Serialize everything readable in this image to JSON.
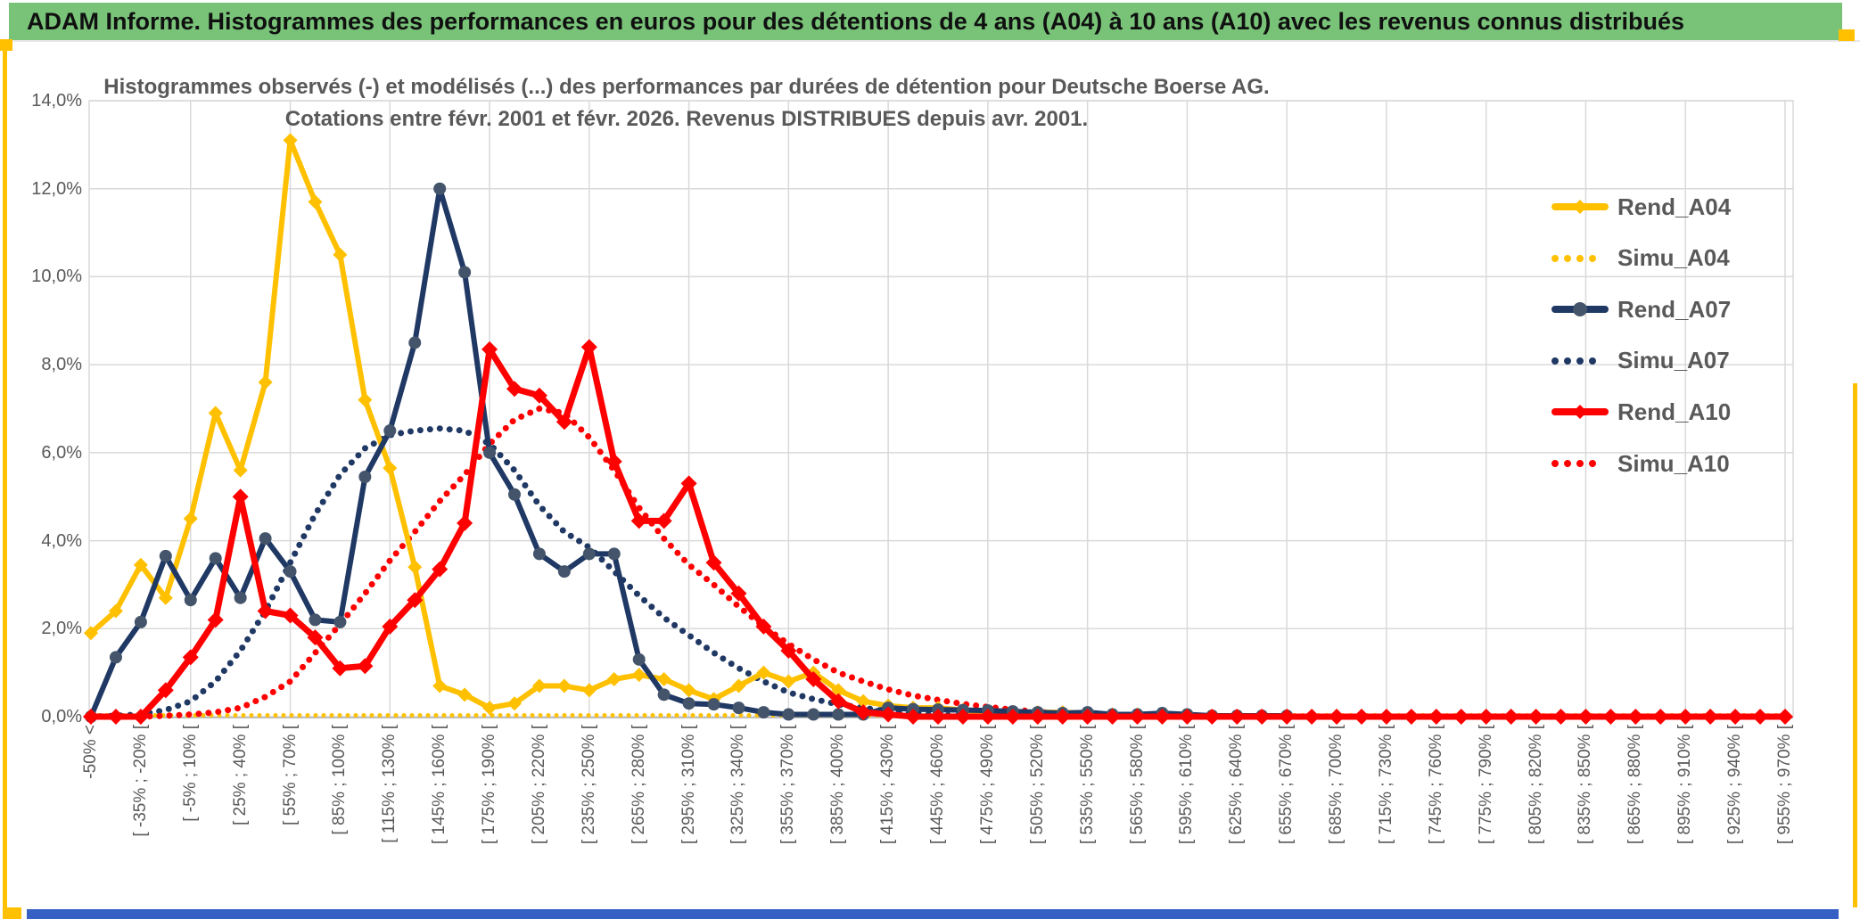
{
  "window": {
    "header_title": "ADAM Informe. Histogrammes des performances en euros pour des détentions de 4 ans (A04) à 10 ans (A10) avec les revenus connus distribués",
    "accent_colors": {
      "banner_green": "#79C379",
      "gold": "#FFC000",
      "bottom_bar_blue": "#3660C4"
    }
  },
  "chart": {
    "title_line1": "Histogrammes observés (-) et modélisés (...) des performances par durées de détention pour Deutsche Boerse AG.",
    "title_line2": "Cotations entre févr. 2001 et févr. 2026. Revenus DISTRIBUES depuis avr. 2001.",
    "y_ticks": [
      "14,0%",
      "12,0%",
      "10,0%",
      "8,0%",
      "6,0%",
      "4,0%",
      "2,0%",
      "0,0%"
    ],
    "y_tick_values": [
      14,
      12,
      10,
      8,
      6,
      4,
      2,
      0
    ],
    "x_labels": [
      "-50% <",
      "[ -35% ; -20% [",
      "[ -5% ; 10% [",
      "[ 25% ; 40% [",
      "[ 55% ; 70% [",
      "[ 85% ; 100% [",
      "[ 115% ; 130% [",
      "[ 145% ; 160% [",
      "[ 175% ; 190% [",
      "[ 205% ; 220% [",
      "[ 235% ; 250% [",
      "[ 265% ; 280% [",
      "[ 295% ; 310% [",
      "[ 325% ; 340% [",
      "[ 355% ; 370% [",
      "[ 385% ; 400% [",
      "[ 415% ; 430% [",
      "[ 445% ; 460% [",
      "[ 475% ; 490% [",
      "[ 505% ; 520% [",
      "[ 535% ; 550% [",
      "[ 565% ; 580% [",
      "[ 595% ; 610% [",
      "[ 625% ; 640% [",
      "[ 655% ; 670% [",
      "[ 685% ; 700% [",
      "[ 715% ; 730% [",
      "[ 745% ; 760% [",
      "[ 775% ; 790% [",
      "[ 805% ; 820% [",
      "[ 835% ; 850% [",
      "[ 865% ; 880% [",
      "[ 895% ; 910% [",
      "[ 925% ; 940% [",
      "[ 955% ; 970% ["
    ],
    "legend": [
      {
        "name": "Rend_A04",
        "label": "Rend_A04",
        "color": "#FFC000",
        "style": "solid",
        "marker": "diamond",
        "marker_color": "#FFC000"
      },
      {
        "name": "Simu_A04",
        "label": "Simu_A04",
        "color": "#FFC000",
        "style": "dotted",
        "marker": "none",
        "marker_color": "#FFC000"
      },
      {
        "name": "Rend_A07",
        "label": "Rend_A07",
        "color": "#1F3864",
        "style": "solid",
        "marker": "circle",
        "marker_color": "#44546A"
      },
      {
        "name": "Simu_A07",
        "label": "Simu_A07",
        "color": "#1F3864",
        "style": "dotted",
        "marker": "none",
        "marker_color": "#1F3864"
      },
      {
        "name": "Rend_A10",
        "label": "Rend_A10",
        "color": "#FF0000",
        "style": "solid",
        "marker": "diamond",
        "marker_color": "#FF0000"
      },
      {
        "name": "Simu_A10",
        "label": "Simu_A10",
        "color": "#FF0000",
        "style": "dotted",
        "marker": "none",
        "marker_color": "#FF0000"
      }
    ]
  },
  "chart_data": {
    "type": "line",
    "title": "Histogrammes observés (-) et modélisés (...) des performances par durées de détention pour Deutsche Boerse AG. Cotations entre févr. 2001 et févr. 2026. Revenus DISTRIBUES depuis avr. 2001.",
    "xlabel": "",
    "ylabel": "",
    "ylim": [
      0,
      14
    ],
    "grid": true,
    "legend_position": "right-inside",
    "bin_width_pct": 15,
    "points_per_label_interval": 2,
    "x_structure": "69 bins of 15% width from '<-50%' to '[955%;970%['; axis labels shown every second bin",
    "categories_shown": [
      "-50% <",
      "[ -35% ; -20% [",
      "[ -5% ; 10% [",
      "[ 25% ; 40% [",
      "[ 55% ; 70% [",
      "[ 85% ; 100% [",
      "[ 115% ; 130% [",
      "[ 145% ; 160% [",
      "[ 175% ; 190% [",
      "[ 205% ; 220% [",
      "[ 235% ; 250% [",
      "[ 265% ; 280% [",
      "[ 295% ; 310% [",
      "[ 325% ; 340% [",
      "[ 355% ; 370% [",
      "[ 385% ; 400% [",
      "[ 415% ; 430% [",
      "[ 445% ; 460% [",
      "[ 475% ; 490% [",
      "[ 505% ; 520% [",
      "[ 535% ; 550% [",
      "[ 565% ; 580% [",
      "[ 595% ; 610% [",
      "[ 625% ; 640% [",
      "[ 655% ; 670% [",
      "[ 685% ; 700% [",
      "[ 715% ; 730% [",
      "[ 745% ; 760% [",
      "[ 775% ; 790% [",
      "[ 805% ; 820% [",
      "[ 835% ; 850% [",
      "[ 865% ; 880% [",
      "[ 895% ; 910% [",
      "[ 925% ; 940% [",
      "[ 955% ; 970% ["
    ],
    "series": [
      {
        "name": "Simu_A04",
        "color": "#FFC000",
        "style": "dotted",
        "width": 5,
        "dash": "0 9",
        "marker": "none",
        "marker_color": "#FFC000",
        "values": [
          0.03,
          0.03,
          0.03,
          0.03,
          0.03,
          0.03,
          0.03,
          0.03,
          0.03,
          0.03,
          0.03,
          0.03,
          0.03,
          0.03,
          0.03,
          0.03,
          0.03,
          0.03,
          0.03,
          0.03,
          0.03,
          0.03,
          0.03,
          0.03,
          0.03,
          0.03,
          0.03,
          0.03,
          0.03,
          0.03,
          0.03,
          0.03,
          0.03,
          0.03,
          0.03,
          0.03,
          0.03,
          0.03,
          0.03,
          0.03,
          0.03,
          0.03,
          0.03,
          0.03,
          0.03,
          0.03,
          0.03,
          0.03,
          0.03,
          0.03,
          0.03,
          0.03,
          0.03,
          0.03,
          0.03,
          0.03,
          0.03,
          0.03,
          0.03,
          0.03,
          0.03,
          0.03,
          0.03,
          0.03,
          0.03,
          0.03,
          0.03,
          0.03,
          0.03
        ]
      },
      {
        "name": "Simu_A07",
        "color": "#1F3864",
        "style": "dotted",
        "width": 7,
        "dash": "0 11",
        "marker": "none",
        "marker_color": "#1F3864",
        "values": [
          0,
          0.02,
          0.05,
          0.15,
          0.35,
          0.8,
          1.5,
          2.4,
          3.5,
          4.6,
          5.5,
          6.1,
          6.4,
          6.5,
          6.55,
          6.5,
          6.2,
          5.6,
          4.8,
          4.2,
          3.85,
          3.3,
          2.75,
          2.25,
          1.85,
          1.45,
          1.1,
          0.8,
          0.55,
          0.4,
          0.28,
          0.2,
          0.12,
          0.07,
          0.04,
          0.02,
          null,
          null,
          null,
          null,
          null,
          null,
          null,
          null,
          null,
          null,
          null,
          null,
          null,
          null,
          null,
          null,
          null,
          null,
          null,
          null,
          null,
          null,
          null,
          null,
          null,
          null,
          null,
          null,
          null,
          null,
          null,
          null,
          null
        ]
      },
      {
        "name": "Simu_A10",
        "color": "#FF0000",
        "style": "dotted",
        "width": 7,
        "dash": "0 11",
        "marker": "none",
        "marker_color": "#FF0000",
        "values": [
          0,
          0,
          0,
          0.02,
          0.05,
          0.1,
          0.2,
          0.45,
          0.8,
          1.45,
          2.1,
          2.8,
          3.55,
          4.2,
          4.9,
          5.5,
          6.2,
          6.75,
          7,
          6.9,
          6.35,
          5.6,
          4.75,
          4.05,
          3.45,
          3,
          2.5,
          2.05,
          1.65,
          1.3,
          1,
          0.8,
          0.62,
          0.48,
          0.38,
          0.29,
          0.22,
          0.16,
          0.11,
          0.07,
          0.04,
          0.02,
          null,
          null,
          null,
          null,
          null,
          null,
          null,
          null,
          null,
          null,
          null,
          null,
          null,
          null,
          null,
          null,
          null,
          null,
          null,
          null,
          null,
          null,
          null,
          null,
          null,
          null,
          null
        ]
      },
      {
        "name": "Rend_A04",
        "color": "#FFC000",
        "style": "solid",
        "width": 6,
        "dash": "",
        "marker": "diamond",
        "marker_color": "#FFC000",
        "values": [
          1.9,
          2.4,
          3.45,
          2.7,
          4.5,
          6.9,
          5.6,
          7.6,
          13.1,
          11.7,
          10.5,
          7.2,
          5.65,
          3.4,
          0.7,
          0.5,
          0.2,
          0.3,
          0.7,
          0.7,
          0.6,
          0.85,
          0.95,
          0.85,
          0.6,
          0.4,
          0.7,
          1,
          0.8,
          1,
          0.6,
          0.35,
          0.25,
          0.2,
          0.2,
          0.15,
          0.1,
          0.1,
          0.1,
          0.1,
          0.08,
          0.05,
          0.05,
          0.02,
          0.02,
          null,
          null,
          null,
          null,
          null,
          null,
          null,
          null,
          null,
          null,
          null,
          null,
          null,
          null,
          null,
          null,
          null,
          null,
          null,
          null,
          null,
          null,
          null,
          null
        ]
      },
      {
        "name": "Rend_A07",
        "color": "#1F3864",
        "style": "solid",
        "width": 6,
        "dash": "",
        "marker": "circle",
        "marker_color": "#44546A",
        "values": [
          0,
          1.35,
          2.15,
          3.65,
          2.65,
          3.6,
          2.7,
          4.05,
          3.3,
          2.2,
          2.15,
          5.45,
          6.5,
          8.5,
          12,
          10.1,
          6,
          5.05,
          3.7,
          3.3,
          3.7,
          3.7,
          1.3,
          0.5,
          0.3,
          0.28,
          0.2,
          0.1,
          0.05,
          0.05,
          0.05,
          0.05,
          0.2,
          0.17,
          0.16,
          0.15,
          0.14,
          0.12,
          0.1,
          0.08,
          0.1,
          0.05,
          0.05,
          0.08,
          0.05,
          0.02,
          0.02,
          0.02,
          0.02,
          null,
          null,
          null,
          null,
          null,
          null,
          null,
          null,
          null,
          null,
          null,
          null,
          null,
          null,
          null,
          null,
          null,
          null,
          null,
          null
        ]
      },
      {
        "name": "Rend_A10",
        "color": "#FF0000",
        "style": "solid",
        "width": 7,
        "dash": "",
        "marker": "diamond",
        "marker_color": "#FF0000",
        "values": [
          0,
          0,
          0,
          0.6,
          1.35,
          2.2,
          5,
          2.4,
          2.3,
          1.8,
          1.1,
          1.15,
          2.05,
          2.65,
          3.35,
          4.4,
          8.35,
          7.45,
          7.3,
          6.7,
          8.4,
          5.8,
          4.45,
          4.45,
          5.3,
          3.5,
          2.8,
          2.05,
          1.5,
          0.85,
          0.35,
          0.1,
          0.05,
          0,
          0,
          0,
          0,
          0,
          0,
          0,
          0,
          0,
          0,
          0,
          0,
          0,
          0,
          0,
          0,
          0,
          0,
          0,
          0,
          0,
          0,
          0,
          0,
          0,
          0,
          0,
          0,
          0,
          0,
          0,
          0,
          0,
          0,
          0,
          0
        ]
      }
    ]
  }
}
